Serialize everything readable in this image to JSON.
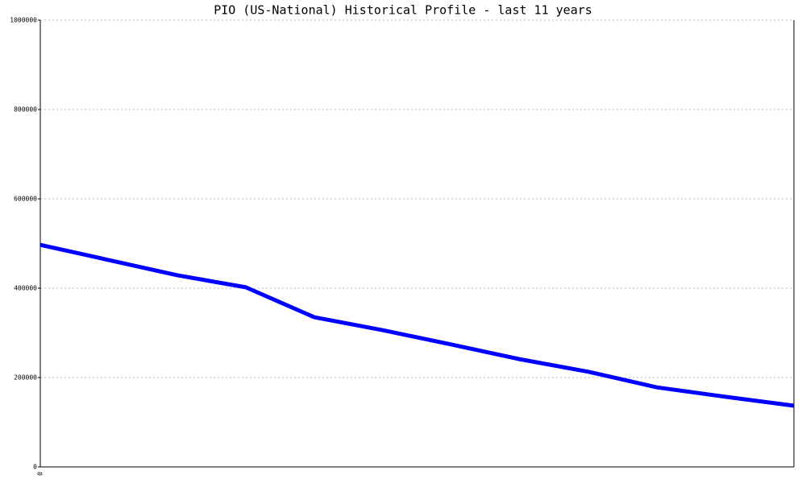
{
  "chart_data": {
    "type": "line",
    "title": "PIO (US-National) Historical Profile - last 11 years",
    "categories": [
      "0",
      null,
      null,
      null,
      null,
      null,
      null,
      null,
      null,
      null,
      null,
      null
    ],
    "series": [
      {
        "name": "PIO",
        "color": "#0000ff",
        "values": [
          497000,
          463000,
          429000,
          402000,
          335000,
          306000,
          274000,
          241000,
          213000,
          178000,
          157000,
          137000
        ]
      }
    ],
    "ylim": [
      0,
      1000000
    ],
    "yticks": [
      0,
      200000,
      400000,
      600000,
      800000,
      1000000
    ],
    "grid": true
  }
}
